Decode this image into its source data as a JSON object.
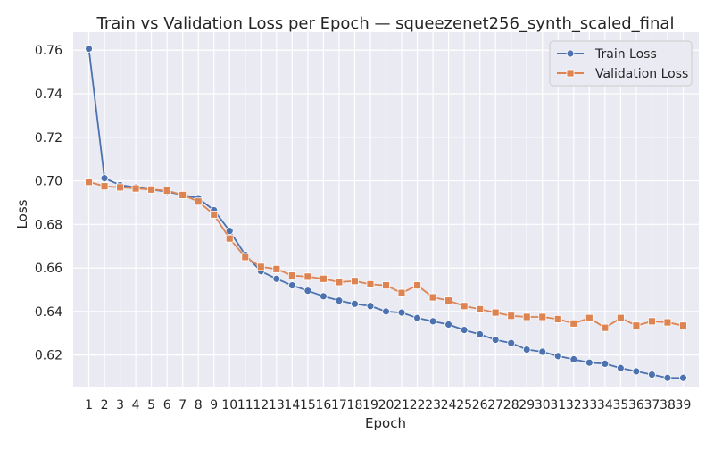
{
  "chart_data": {
    "type": "line",
    "title": "Train vs Validation Loss per Epoch — squeezenet256_synth_scaled_final",
    "xlabel": "Epoch",
    "ylabel": "Loss",
    "ylim": [
      0.6055,
      0.7683
    ],
    "yticks": [
      0.62,
      0.64,
      0.66,
      0.68,
      0.7,
      0.72,
      0.74,
      0.76
    ],
    "grid": true,
    "legend_position": "top-right",
    "x": [
      1,
      2,
      3,
      4,
      5,
      6,
      7,
      8,
      9,
      10,
      11,
      12,
      13,
      14,
      15,
      16,
      17,
      18,
      19,
      20,
      21,
      22,
      23,
      24,
      25,
      26,
      27,
      28,
      29,
      30,
      31,
      32,
      33,
      34,
      35,
      36,
      37,
      38,
      39
    ],
    "series": [
      {
        "name": "Train Loss",
        "color": "#4c72b0",
        "marker": "circle",
        "values": [
          0.7607,
          0.7012,
          0.698,
          0.697,
          0.696,
          0.695,
          0.6935,
          0.692,
          0.6865,
          0.677,
          0.666,
          0.6585,
          0.655,
          0.652,
          0.6495,
          0.647,
          0.645,
          0.6435,
          0.6425,
          0.64,
          0.6395,
          0.637,
          0.6355,
          0.634,
          0.6315,
          0.6295,
          0.627,
          0.6255,
          0.6225,
          0.6215,
          0.6195,
          0.618,
          0.6165,
          0.616,
          0.614,
          0.6125,
          0.611,
          0.6095,
          0.6095
        ]
      },
      {
        "name": "Validation Loss",
        "color": "#dd8452",
        "marker": "square",
        "values": [
          0.6995,
          0.6975,
          0.697,
          0.6965,
          0.696,
          0.6955,
          0.6935,
          0.6905,
          0.6845,
          0.6735,
          0.665,
          0.6605,
          0.6595,
          0.6565,
          0.656,
          0.655,
          0.6535,
          0.654,
          0.6525,
          0.652,
          0.6485,
          0.652,
          0.6465,
          0.645,
          0.6425,
          0.641,
          0.6395,
          0.638,
          0.6375,
          0.6375,
          0.6365,
          0.6345,
          0.637,
          0.6325,
          0.637,
          0.6335,
          0.6355,
          0.635,
          0.6335
        ]
      }
    ]
  }
}
